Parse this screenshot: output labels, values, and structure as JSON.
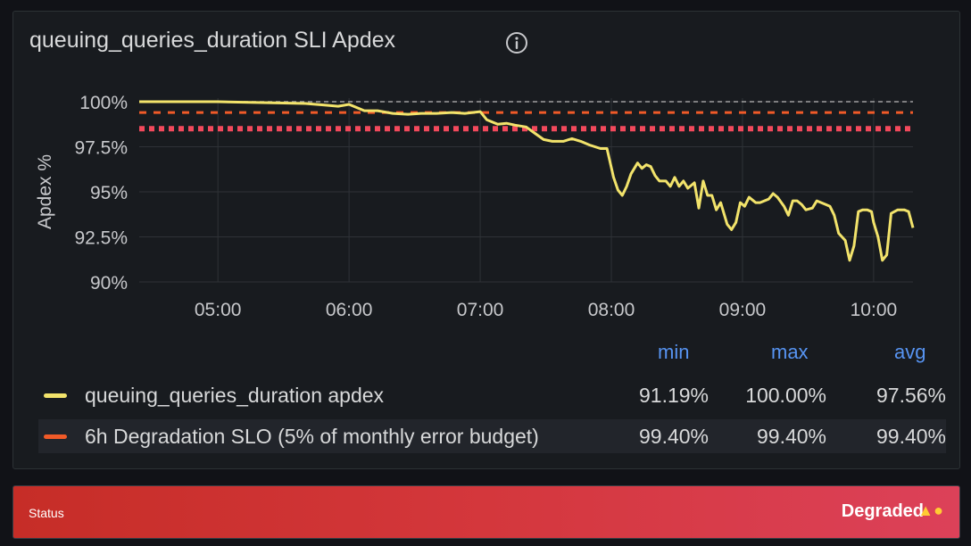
{
  "panel": {
    "title": "queuing_queries_duration SLI Apdex",
    "info_icon": "info-circle-icon"
  },
  "legend": {
    "headers": {
      "min": "min",
      "max": "max",
      "avg": "avg"
    },
    "series": [
      {
        "name": "queuing_queries_duration apdex",
        "color": "#f2e36b",
        "min": "91.19%",
        "max": "100.00%",
        "avg": "97.56%"
      },
      {
        "name": "6h Degradation SLO (5% of monthly error budget)",
        "color": "#f05a28",
        "min": "99.40%",
        "max": "99.40%",
        "avg": "99.40%"
      }
    ]
  },
  "status": {
    "label": "Status",
    "value": "Degraded",
    "icons": [
      "fire-icon",
      "hot-face-icon"
    ]
  },
  "chart_data": {
    "type": "line",
    "ylabel": "Apdex %",
    "ylim": [
      90,
      100
    ],
    "xlim": [
      "04:24",
      "10:18"
    ],
    "yticks": [
      "100%",
      "97.5%",
      "95%",
      "92.5%",
      "90%"
    ],
    "xticks": [
      "05:00",
      "06:00",
      "07:00",
      "08:00",
      "09:00",
      "10:00"
    ],
    "grid": true,
    "series": [
      {
        "name": "queuing_queries_duration apdex",
        "color": "#f2e36b",
        "style": "solid",
        "x": [
          "04:24",
          "04:40",
          "05:00",
          "05:20",
          "05:40",
          "05:50",
          "05:55",
          "06:00",
          "06:07",
          "06:13",
          "06:20",
          "06:27",
          "06:33",
          "06:40",
          "06:47",
          "06:53",
          "07:00",
          "07:03",
          "07:08",
          "07:12",
          "07:16",
          "07:21",
          "07:25",
          "07:29",
          "07:33",
          "07:38",
          "07:42",
          "07:46",
          "07:50",
          "07:55",
          "07:58",
          "08:01",
          "08:03",
          "08:05",
          "08:07",
          "08:09",
          "08:12",
          "08:14",
          "08:16",
          "08:18",
          "08:20",
          "08:22",
          "08:25",
          "08:27",
          "08:29",
          "08:31",
          "08:33",
          "08:35",
          "08:38",
          "08:40",
          "08:42",
          "08:44",
          "08:46",
          "08:48",
          "08:50",
          "08:53",
          "08:55",
          "08:57",
          "08:59",
          "09:01",
          "09:03",
          "09:06",
          "09:08",
          "09:10",
          "09:12",
          "09:14",
          "09:16",
          "09:19",
          "09:21",
          "09:23",
          "09:25",
          "09:27",
          "09:29",
          "09:32",
          "09:34",
          "09:36",
          "09:38",
          "09:40",
          "09:42",
          "09:44",
          "09:47",
          "09:49",
          "09:51",
          "09:53",
          "09:55",
          "09:57",
          "09:59",
          "10:00",
          "10:02",
          "10:04",
          "10:06",
          "10:08",
          "10:11",
          "10:14",
          "10:16",
          "10:18"
        ],
        "y": [
          100.0,
          100.0,
          100.0,
          99.95,
          99.9,
          99.8,
          99.75,
          99.85,
          99.5,
          99.5,
          99.35,
          99.3,
          99.35,
          99.35,
          99.4,
          99.35,
          99.45,
          99.0,
          98.75,
          98.8,
          98.7,
          98.6,
          98.25,
          97.9,
          97.8,
          97.8,
          97.95,
          97.8,
          97.6,
          97.4,
          97.4,
          95.8,
          95.1,
          94.8,
          95.3,
          96.0,
          96.6,
          96.3,
          96.5,
          96.4,
          95.9,
          95.6,
          95.6,
          95.3,
          95.8,
          95.3,
          95.6,
          95.2,
          95.5,
          94.1,
          95.6,
          94.8,
          94.8,
          94.0,
          94.4,
          93.2,
          92.9,
          93.3,
          94.4,
          94.2,
          94.7,
          94.4,
          94.4,
          94.5,
          94.6,
          94.9,
          94.7,
          94.2,
          93.7,
          94.5,
          94.5,
          94.3,
          94.0,
          94.1,
          94.5,
          94.4,
          94.3,
          94.2,
          93.7,
          92.7,
          92.3,
          91.2,
          92.0,
          93.9,
          94.0,
          94.0,
          93.9,
          93.3,
          92.5,
          91.2,
          91.5,
          93.8,
          94.0,
          94.0,
          93.9,
          93.0
        ]
      },
      {
        "name": "6h Degradation SLO (5% of monthly error budget)",
        "color": "#f05a28",
        "style": "dashed",
        "x": [
          "04:24",
          "10:18"
        ],
        "y": [
          99.4,
          99.4
        ]
      },
      {
        "color": "#f2495c",
        "style": "dotted",
        "x": [
          "04:24",
          "10:18"
        ],
        "y": [
          98.5,
          98.5
        ]
      },
      {
        "color": "#a0a0a0",
        "style": "dashed",
        "x": [
          "04:24",
          "10:18"
        ],
        "y": [
          100,
          100
        ]
      }
    ]
  }
}
